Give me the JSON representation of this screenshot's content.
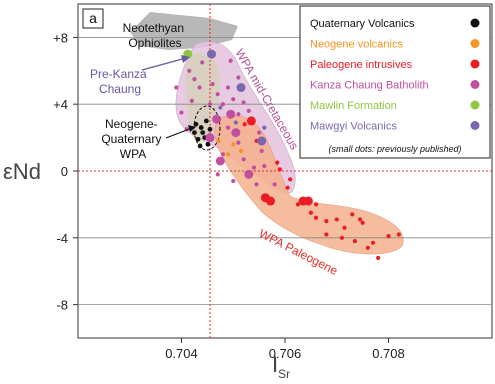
{
  "chart_data": {
    "type": "scatter",
    "panel_label": "a",
    "xlabel_main": "I",
    "xlabel_sub": "Sr",
    "ylabel": "εNd",
    "xlim": [
      0.702,
      0.71
    ],
    "ylim": [
      -10,
      10
    ],
    "x_ticks": [
      0.704,
      0.706,
      0.708
    ],
    "x_tick_labels": [
      "0.704",
      "0.706",
      "0.708"
    ],
    "y_ticks": [
      8,
      4,
      0,
      -4,
      -8
    ],
    "y_tick_labels": [
      "+8",
      "+4",
      "0",
      "-4",
      "-8"
    ],
    "grid": "horizontal lines at +8, +4, -4, -8",
    "reference_lines": {
      "x": 0.70455,
      "y": 0
    },
    "legend_position": "top-right",
    "legend_note": "(small dots: previously published)",
    "series": [
      {
        "name": "Quaternary Volcanics",
        "color": "#111111",
        "points": [
          [
            0.70425,
            2.3
          ],
          [
            0.70432,
            1.9
          ],
          [
            0.70438,
            2.6
          ],
          [
            0.70445,
            2.0
          ],
          [
            0.70451,
            1.6
          ],
          [
            0.70428,
            2.8
          ],
          [
            0.70441,
            2.3
          ],
          [
            0.70455,
            2.5
          ],
          [
            0.70448,
            3.0
          ],
          [
            0.70436,
            1.5
          ],
          [
            0.70458,
            1.9
          ]
        ]
      },
      {
        "name": "Neogene volcanics",
        "color": "#f7941d",
        "points": [
          [
            0.70472,
            1.8
          ],
          [
            0.7049,
            1.0
          ],
          [
            0.705,
            1.6
          ],
          [
            0.70515,
            1.2
          ]
        ]
      },
      {
        "name": "Paleogene intrusives",
        "color": "#ed1c24",
        "big": [
          [
            0.70535,
            3.0
          ],
          [
            0.70635,
            -1.8
          ],
          [
            0.70645,
            -1.8
          ],
          [
            0.70562,
            -1.6
          ],
          [
            0.70572,
            -1.8
          ]
        ],
        "points": [
          [
            0.70522,
            2.8
          ],
          [
            0.70545,
            1.8
          ],
          [
            0.70585,
            0.5
          ],
          [
            0.7061,
            -0.5
          ],
          [
            0.70625,
            -2.0
          ],
          [
            0.7065,
            -2.5
          ],
          [
            0.7066,
            -2.8
          ],
          [
            0.7068,
            -3.0
          ],
          [
            0.707,
            -2.9
          ],
          [
            0.70715,
            -3.4
          ],
          [
            0.7073,
            -2.6
          ],
          [
            0.7075,
            -3.1
          ],
          [
            0.70735,
            -4.2
          ],
          [
            0.7076,
            -4.6
          ],
          [
            0.7078,
            -5.2
          ],
          [
            0.7077,
            -4.3
          ],
          [
            0.708,
            -3.9
          ],
          [
            0.7082,
            -3.8
          ],
          [
            0.7068,
            -3.8
          ],
          [
            0.7071,
            -4.0
          ],
          [
            0.70745,
            -2.9
          ],
          [
            0.7066,
            -2.0
          ],
          [
            0.70605,
            -1.0
          ],
          [
            0.7059,
            0.1
          ]
        ]
      },
      {
        "name": "Kanza Chaung Batholith",
        "color": "#c0509f",
        "big": [
          [
            0.70468,
            3.1
          ],
          [
            0.70455,
            2.0
          ],
          [
            0.70495,
            3.4
          ],
          [
            0.70475,
            0.6
          ],
          [
            0.70505,
            2.3
          ],
          [
            0.7053,
            -0.2
          ]
        ],
        "points": [
          [
            0.7039,
            5.0
          ],
          [
            0.704,
            3.5
          ],
          [
            0.7041,
            2.5
          ],
          [
            0.70415,
            6.0
          ],
          [
            0.70425,
            5.5
          ],
          [
            0.70435,
            5.0
          ],
          [
            0.7046,
            5.2
          ],
          [
            0.7047,
            4.6
          ],
          [
            0.7048,
            4.0
          ],
          [
            0.7049,
            5.0
          ],
          [
            0.705,
            4.3
          ],
          [
            0.7051,
            3.4
          ],
          [
            0.7052,
            4.1
          ],
          [
            0.7053,
            3.6
          ],
          [
            0.7055,
            2.3
          ],
          [
            0.70555,
            1.2
          ],
          [
            0.7056,
            0.3
          ],
          [
            0.70545,
            -0.8
          ],
          [
            0.7054,
            0.2
          ],
          [
            0.7052,
            0.7
          ],
          [
            0.7051,
            1.7
          ],
          [
            0.7049,
            2.6
          ],
          [
            0.7048,
            1.0
          ],
          [
            0.7047,
            -0.2
          ],
          [
            0.705,
            -0.6
          ],
          [
            0.7058,
            -0.8
          ],
          [
            0.7042,
            4.2
          ],
          [
            0.7044,
            6.5
          ],
          [
            0.70455,
            4.0
          ],
          [
            0.70495,
            6.6
          ],
          [
            0.7051,
            5.6
          ]
        ]
      },
      {
        "name": "Mawlin Formation",
        "color": "#8dc63f",
        "big": [
          [
            0.70412,
            7.0
          ]
        ],
        "points": []
      },
      {
        "name": "Mawgyi Volcanics",
        "color": "#7b67b0",
        "big": [
          [
            0.70458,
            7.0
          ],
          [
            0.70515,
            5.0
          ],
          [
            0.70555,
            1.8
          ]
        ],
        "points": [
          [
            0.70475,
            3.8
          ],
          [
            0.70505,
            2.9
          ],
          [
            0.7056,
            2.6
          ]
        ]
      }
    ],
    "fields": [
      {
        "name": "Neotethyan Ophiolites",
        "fill": "#b8b8b8"
      },
      {
        "name": "WPA mid-Cretaceous",
        "fill": "#e3c2dd"
      },
      {
        "name": "WPA Paleogene",
        "fill": "#f5b08d"
      },
      {
        "name": "Neogene-Quaternary WPA"
      }
    ],
    "annotations": [
      {
        "text_lines": [
          "Neotethyan",
          "Ophiolites"
        ],
        "color": "#111111"
      },
      {
        "text_lines": [
          "Pre-Kanza",
          "Chaung"
        ],
        "color": "#6a55a6"
      },
      {
        "text_lines": [
          "Neogene-",
          "Quaternary",
          "WPA"
        ],
        "color": "#111111"
      },
      {
        "text_lines": [
          "WPA mid-Cretaceous"
        ],
        "color": "#b5509a"
      },
      {
        "text_lines": [
          "WPA Paleogene"
        ],
        "color": "#e2302b"
      }
    ]
  }
}
